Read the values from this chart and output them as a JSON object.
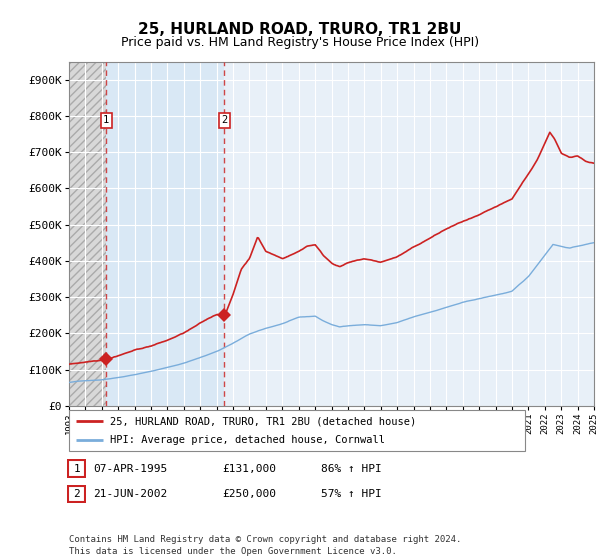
{
  "title": "25, HURLAND ROAD, TRURO, TR1 2BU",
  "subtitle": "Price paid vs. HM Land Registry's House Price Index (HPI)",
  "ylim": [
    0,
    950000
  ],
  "yticks": [
    0,
    100000,
    200000,
    300000,
    400000,
    500000,
    600000,
    700000,
    800000,
    900000
  ],
  "ytick_labels": [
    "£0",
    "£100K",
    "£200K",
    "£300K",
    "£400K",
    "£500K",
    "£600K",
    "£700K",
    "£800K",
    "£900K"
  ],
  "x_start_year": 1993,
  "x_end_year": 2025,
  "hpi_color": "#7aaddb",
  "price_color": "#cc2222",
  "purchase1_date": 1995.27,
  "purchase1_price": 131000,
  "purchase2_date": 2002.47,
  "purchase2_price": 250000,
  "legend_label1": "25, HURLAND ROAD, TRURO, TR1 2BU (detached house)",
  "legend_label2": "HPI: Average price, detached house, Cornwall",
  "table_row1": [
    "1",
    "07-APR-1995",
    "£131,000",
    "86% ↑ HPI"
  ],
  "table_row2": [
    "2",
    "21-JUN-2002",
    "£250,000",
    "57% ↑ HPI"
  ],
  "footer": "Contains HM Land Registry data © Crown copyright and database right 2024.\nThis data is licensed under the Open Government Licence v3.0.",
  "hpi_waypoints": [
    [
      1993.0,
      65000
    ],
    [
      1994.0,
      70000
    ],
    [
      1995.0,
      73000
    ],
    [
      1996.0,
      80000
    ],
    [
      1997.0,
      88000
    ],
    [
      1998.0,
      97000
    ],
    [
      1999.0,
      108000
    ],
    [
      2000.0,
      120000
    ],
    [
      2001.0,
      135000
    ],
    [
      2002.0,
      152000
    ],
    [
      2003.0,
      175000
    ],
    [
      2004.0,
      200000
    ],
    [
      2005.0,
      215000
    ],
    [
      2006.0,
      228000
    ],
    [
      2007.0,
      245000
    ],
    [
      2008.0,
      248000
    ],
    [
      2008.5,
      235000
    ],
    [
      2009.0,
      225000
    ],
    [
      2009.5,
      218000
    ],
    [
      2010.0,
      222000
    ],
    [
      2011.0,
      225000
    ],
    [
      2012.0,
      222000
    ],
    [
      2013.0,
      230000
    ],
    [
      2014.0,
      245000
    ],
    [
      2015.0,
      258000
    ],
    [
      2016.0,
      272000
    ],
    [
      2017.0,
      285000
    ],
    [
      2018.0,
      295000
    ],
    [
      2019.0,
      305000
    ],
    [
      2020.0,
      315000
    ],
    [
      2021.0,
      355000
    ],
    [
      2022.0,
      415000
    ],
    [
      2022.5,
      445000
    ],
    [
      2023.0,
      440000
    ],
    [
      2023.5,
      435000
    ],
    [
      2024.0,
      440000
    ],
    [
      2024.5,
      445000
    ],
    [
      2025.0,
      450000
    ]
  ],
  "price_waypoints": [
    [
      1993.0,
      115000
    ],
    [
      1994.0,
      122000
    ],
    [
      1995.27,
      131000
    ],
    [
      1996.0,
      143000
    ],
    [
      1997.0,
      158000
    ],
    [
      1998.0,
      170000
    ],
    [
      1999.0,
      185000
    ],
    [
      2000.0,
      205000
    ],
    [
      2001.0,
      230000
    ],
    [
      2002.0,
      255000
    ],
    [
      2002.47,
      250000
    ],
    [
      2003.0,
      310000
    ],
    [
      2003.5,
      380000
    ],
    [
      2004.0,
      410000
    ],
    [
      2004.5,
      470000
    ],
    [
      2005.0,
      430000
    ],
    [
      2005.5,
      420000
    ],
    [
      2006.0,
      410000
    ],
    [
      2006.5,
      420000
    ],
    [
      2007.0,
      430000
    ],
    [
      2007.5,
      445000
    ],
    [
      2008.0,
      450000
    ],
    [
      2008.5,
      420000
    ],
    [
      2009.0,
      400000
    ],
    [
      2009.5,
      390000
    ],
    [
      2010.0,
      400000
    ],
    [
      2011.0,
      410000
    ],
    [
      2012.0,
      400000
    ],
    [
      2013.0,
      415000
    ],
    [
      2014.0,
      440000
    ],
    [
      2015.0,
      465000
    ],
    [
      2016.0,
      490000
    ],
    [
      2017.0,
      510000
    ],
    [
      2018.0,
      525000
    ],
    [
      2019.0,
      545000
    ],
    [
      2020.0,
      565000
    ],
    [
      2021.0,
      635000
    ],
    [
      2021.5,
      670000
    ],
    [
      2022.0,
      720000
    ],
    [
      2022.3,
      750000
    ],
    [
      2022.6,
      730000
    ],
    [
      2023.0,
      690000
    ],
    [
      2023.5,
      680000
    ],
    [
      2024.0,
      685000
    ],
    [
      2024.5,
      670000
    ],
    [
      2025.0,
      665000
    ]
  ]
}
